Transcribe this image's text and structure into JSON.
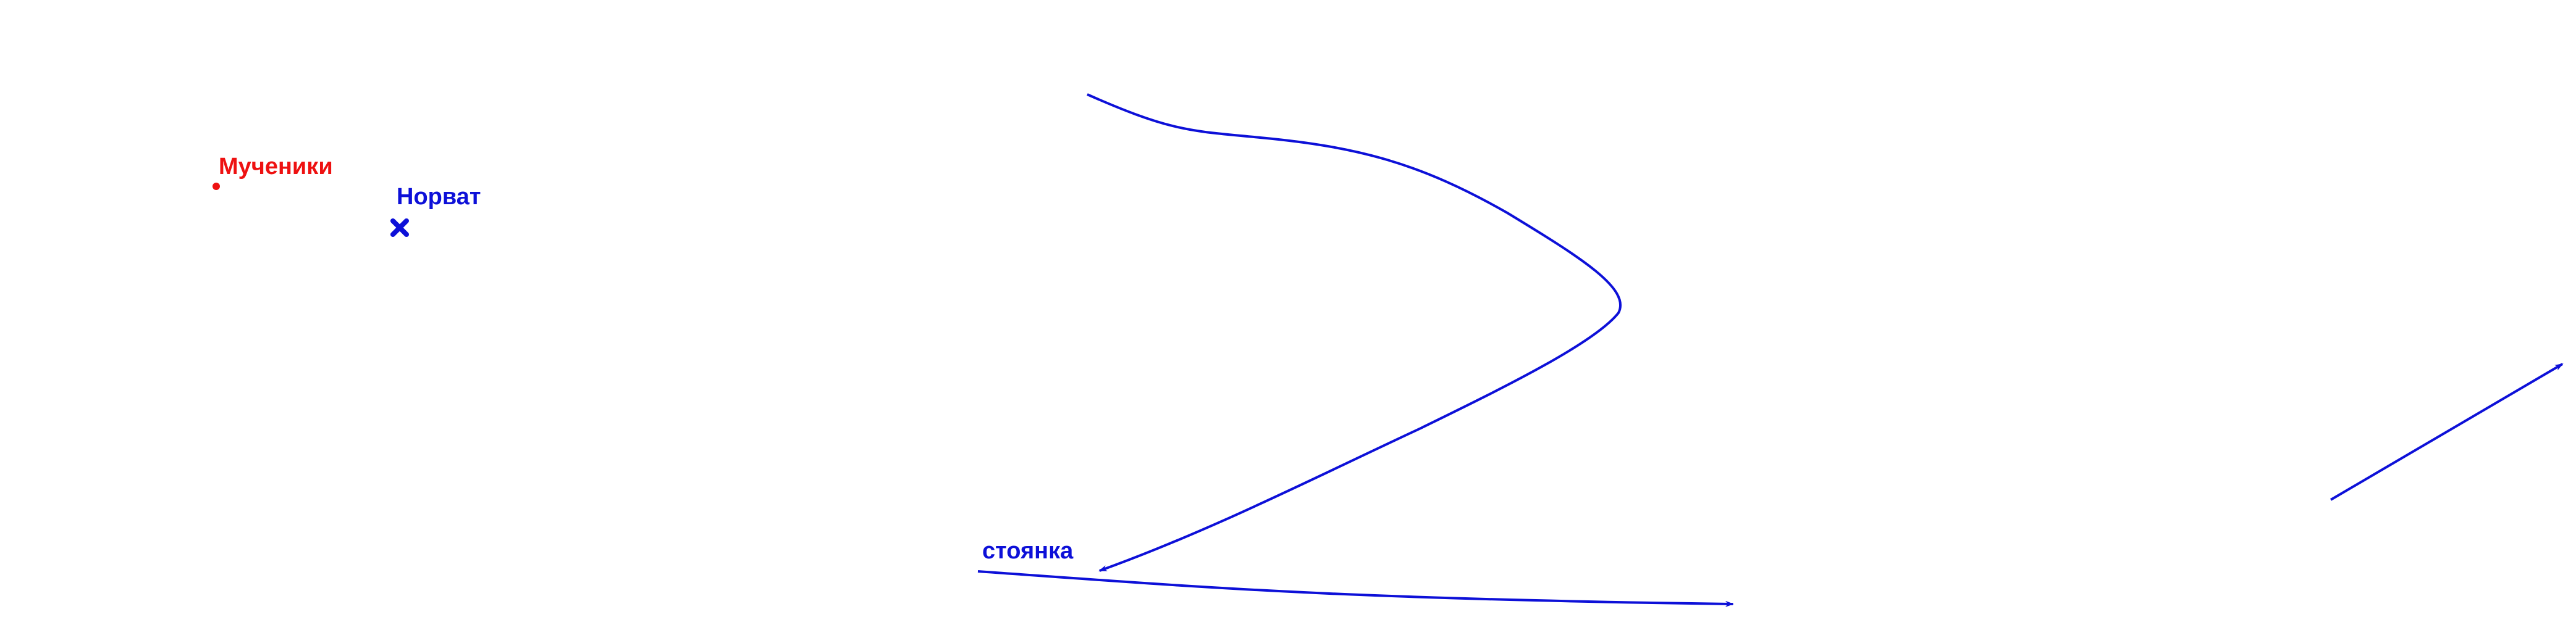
{
  "colors": {
    "red": "#ee1111",
    "blue": "#0d10d8"
  },
  "places": {
    "muchniki": {
      "label": "Мученики",
      "marker": "dot-icon",
      "color": "#ee1111"
    },
    "norvat": {
      "label": "Норват",
      "marker": "cross-icon",
      "color": "#0d10d8"
    },
    "stoyanka": {
      "label": "стоянка",
      "color": "#0d10d8"
    }
  },
  "routes": [
    {
      "name": "curved-route",
      "color": "#0d10d8"
    },
    {
      "name": "lower-route",
      "color": "#0d10d8"
    },
    {
      "name": "right-route",
      "color": "#0d10d8"
    }
  ]
}
